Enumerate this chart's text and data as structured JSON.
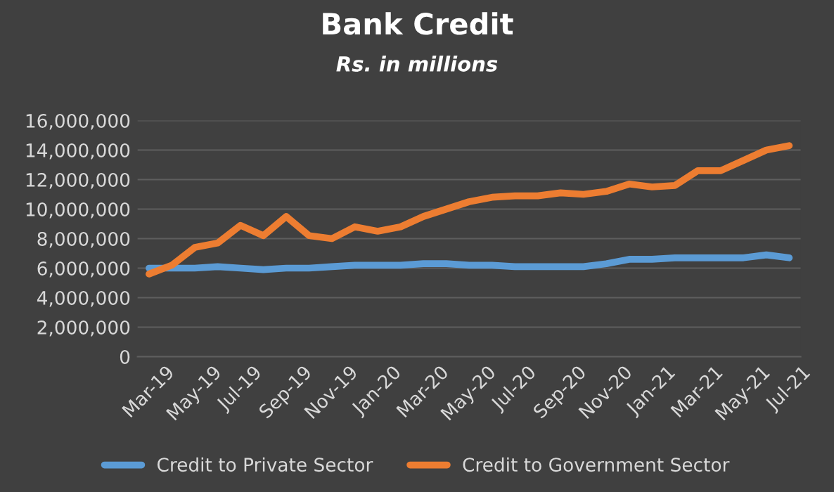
{
  "chart_data": {
    "type": "line",
    "title": "Bank Credit",
    "subtitle": "Rs. in millions",
    "categories": [
      "Mar-19",
      null,
      "May-19",
      null,
      "Jul-19",
      null,
      "Sep-19",
      null,
      "Nov-19",
      null,
      "Jan-20",
      null,
      "Mar-20",
      null,
      "May-20",
      null,
      "Jul-20",
      null,
      "Sep-20",
      null,
      "Nov-20",
      null,
      "Jan-21",
      null,
      "Mar-21",
      null,
      "May-21",
      null,
      "Jul-21"
    ],
    "series": [
      {
        "name": "Credit to Private Sector",
        "color": "#5b9bd5",
        "values": [
          6000000,
          6000000,
          6000000,
          6100000,
          6000000,
          5900000,
          6000000,
          6000000,
          6100000,
          6200000,
          6200000,
          6200000,
          6300000,
          6300000,
          6200000,
          6200000,
          6100000,
          6100000,
          6100000,
          6100000,
          6300000,
          6600000,
          6600000,
          6700000,
          6700000,
          6700000,
          6700000,
          6900000,
          6700000
        ]
      },
      {
        "name": "Credit to Government Sector",
        "color": "#ed7d31",
        "values": [
          5600000,
          6200000,
          7400000,
          7700000,
          8900000,
          8200000,
          9500000,
          8200000,
          8000000,
          8800000,
          8500000,
          8800000,
          9500000,
          10000000,
          10500000,
          10800000,
          10900000,
          10900000,
          11100000,
          11000000,
          11200000,
          11700000,
          11500000,
          11600000,
          12600000,
          12600000,
          13300000,
          14000000,
          14300000
        ]
      }
    ],
    "ylim": [
      0,
      16000000
    ],
    "yticks": [
      {
        "value": 0,
        "label": "0"
      },
      {
        "value": 2000000,
        "label": "2,000,000"
      },
      {
        "value": 4000000,
        "label": "4,000,000"
      },
      {
        "value": 6000000,
        "label": "6,000,000"
      },
      {
        "value": 8000000,
        "label": "8,000,000"
      },
      {
        "value": 10000000,
        "label": "10,000,000"
      },
      {
        "value": 12000000,
        "label": "12,000,000"
      },
      {
        "value": 14000000,
        "label": "14,000,000"
      },
      {
        "value": 16000000,
        "label": "16,000,000"
      }
    ],
    "grid": "y",
    "legend": "bottom",
    "marker": "none",
    "line_style": "solid"
  }
}
